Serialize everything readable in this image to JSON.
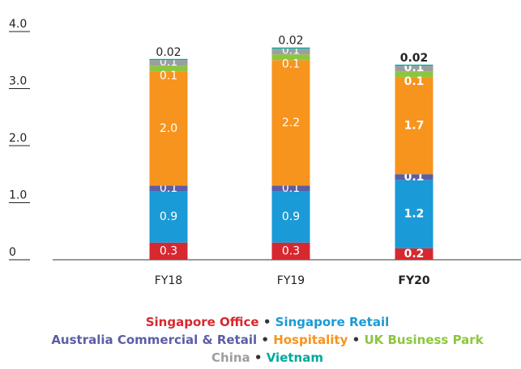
{
  "chart_data": {
    "type": "stacked_bar",
    "categories": [
      "FY18",
      "FY19",
      "FY20"
    ],
    "series": [
      {
        "name": "Singapore Office",
        "color": "#d7282f",
        "values": [
          0.3,
          0.3,
          0.2
        ]
      },
      {
        "name": "Singapore Retail",
        "color": "#1a9ad6",
        "values": [
          0.9,
          0.9,
          1.2
        ]
      },
      {
        "name": "Australia Commercial & Retail",
        "color": "#5b5ea6",
        "values": [
          0.1,
          0.1,
          0.1
        ]
      },
      {
        "name": "Hospitality",
        "color": "#f7941d",
        "values": [
          2.0,
          2.2,
          1.7
        ],
        "value_labels": [
          "2.0",
          "2.2",
          "1.7"
        ]
      },
      {
        "name": "UK Business Park",
        "color": "#8cc63f",
        "values": [
          0.1,
          0.1,
          0.1
        ]
      },
      {
        "name": "China",
        "color": "#9e9e9e",
        "values": [
          0.1,
          0.1,
          0.1
        ]
      },
      {
        "name": "Vietnam",
        "color": "#00a99d",
        "values": [
          0.02,
          0.02,
          0.02
        ]
      }
    ],
    "ylim": [
      0,
      4
    ],
    "yticks": [
      0,
      {
        "value": 1,
        "label": "1.0"
      },
      {
        "value": 2,
        "label": "2.0"
      },
      {
        "value": 3,
        "label": "3.0"
      },
      {
        "value": 4,
        "label": "4.0"
      }
    ]
  }
}
